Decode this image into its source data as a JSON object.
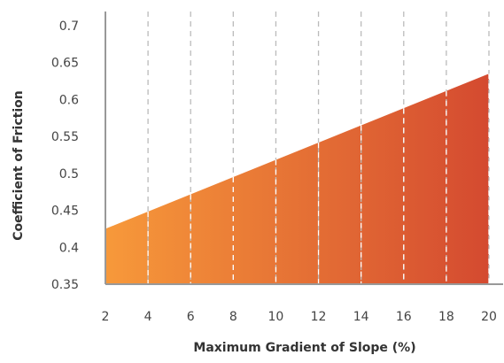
{
  "chart_data": {
    "type": "area",
    "title": "",
    "xlabel": "Maximum Gradient of Slope (%)",
    "ylabel": "Coefficient of Friction",
    "x": [
      2,
      20
    ],
    "y": [
      0.425,
      0.635
    ],
    "xticks": [
      "2",
      "4",
      "6",
      "8",
      "10",
      "12",
      "14",
      "16",
      "18",
      "20"
    ],
    "yticks": [
      "0.35",
      "0.4",
      "0.45",
      "0.5",
      "0.55",
      "0.6",
      "0.65",
      "0.7"
    ],
    "xlim": [
      2,
      20
    ],
    "ylim": [
      0.35,
      0.7
    ],
    "grid": "vertical-dashed",
    "colors": {
      "fill_start": "#f7993a",
      "fill_end": "#d44a30",
      "grid": "#ffffff",
      "axis": "#999999"
    }
  }
}
